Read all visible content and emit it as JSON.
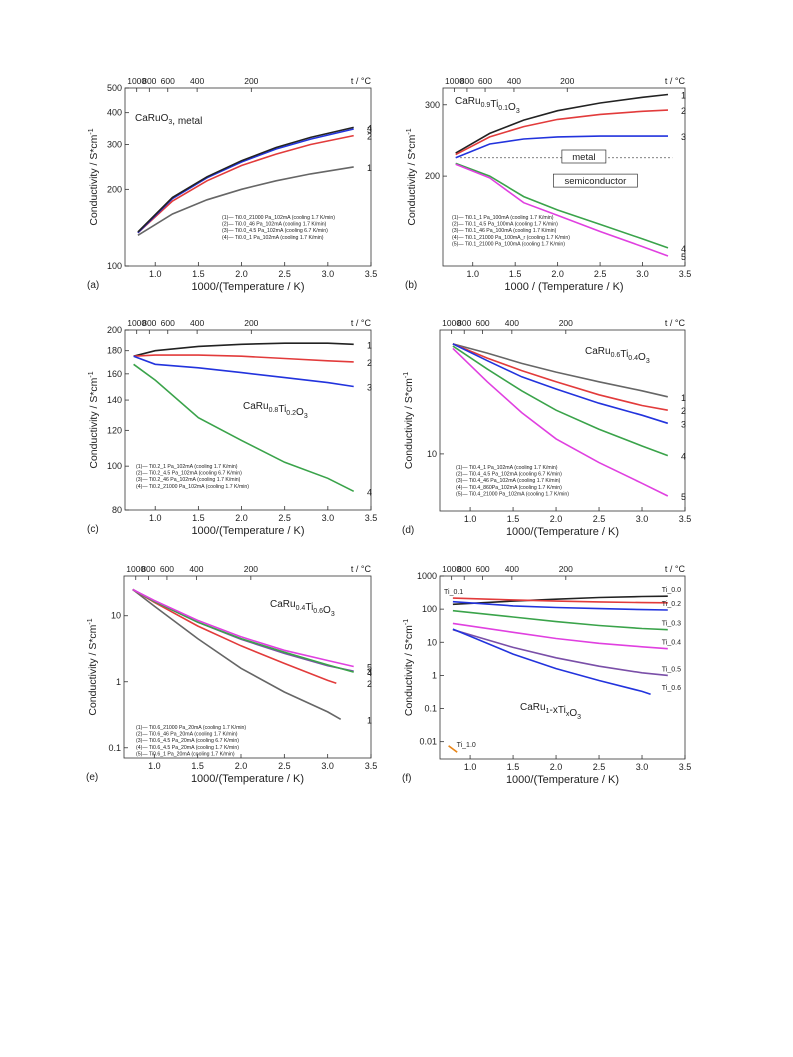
{
  "colors": {
    "black": "#222222",
    "red": "#e23b3b",
    "blue": "#2233dd",
    "green": "#3aa34a",
    "magenta": "#e040e0",
    "grey": "#666666",
    "purple": "#7a4fa8",
    "orange": "#e8861a"
  },
  "chart_data": [
    {
      "type": "line",
      "panel_label": "(a)",
      "title": "CaRuO3, metal",
      "xlabel": "1000/(Temperature / K)",
      "ylabel": "Conductivity / S*cm-1",
      "top_axis_label": "t / °C",
      "xlim": [
        0.65,
        3.5
      ],
      "ylim": [
        100,
        500
      ],
      "yscale": "log",
      "xticks": [
        "1.0",
        "1.5",
        "2.0",
        "2.5",
        "3.0",
        "3.5"
      ],
      "yticks": [
        "100",
        "200",
        "300",
        "400",
        "500"
      ],
      "top_ticks": [
        "1000",
        "800",
        "600",
        "400",
        "200"
      ],
      "legend": [
        "(1)— Ti0.0_21000 Pa_102mA (cooling 1.7 K/min)",
        "(2)— Ti0.0_46 Pa_102mA (cooling 1.7 K/min)",
        "(3)— Ti0.0_4.5 Pa_102mA (cooling 6.7 K/min)",
        "(4)— Ti0.0_1 Pa_102mA (cooling 1.7 K/min)"
      ],
      "series": [
        {
          "name": "1",
          "color": "#666666",
          "x": [
            0.8,
            1.2,
            1.6,
            2.0,
            2.4,
            2.8,
            3.3
          ],
          "y": [
            132,
            160,
            182,
            200,
            216,
            230,
            245
          ]
        },
        {
          "name": "2",
          "color": "#e23b3b",
          "x": [
            0.8,
            1.2,
            1.6,
            2.0,
            2.4,
            2.8,
            3.3
          ],
          "y": [
            135,
            180,
            216,
            248,
            275,
            300,
            325
          ]
        },
        {
          "name": "3",
          "color": "#2233dd",
          "x": [
            0.8,
            1.2,
            1.6,
            2.0,
            2.4,
            2.8,
            3.3
          ],
          "y": [
            135,
            184,
            222,
            256,
            288,
            315,
            345
          ]
        },
        {
          "name": "4",
          "color": "#222222",
          "x": [
            0.8,
            1.2,
            1.6,
            2.0,
            2.4,
            2.8,
            3.3
          ],
          "y": [
            136,
            186,
            224,
            259,
            292,
            320,
            350
          ]
        }
      ]
    },
    {
      "type": "line",
      "panel_label": "(b)",
      "title": "CaRu0.9Ti0.1O3",
      "xlabel": "1000 / (Temperature / K)",
      "ylabel": "Conductivity / S*cm-1",
      "top_axis_label": "t / °C",
      "xlim": [
        0.65,
        3.5
      ],
      "ylim": [
        120,
        330
      ],
      "yscale": "log",
      "xticks": [
        "1.0",
        "1.5",
        "2.0",
        "2.5",
        "3.0",
        "3.5"
      ],
      "yticks": [
        "200",
        "300"
      ],
      "top_ticks": [
        "1000",
        "800",
        "600",
        "400",
        "200"
      ],
      "annotations": [
        "metal",
        "semiconductor"
      ],
      "legend": [
        "(1)— Ti0.1_1 Pa_100mA (cooling 1.7 K/min)",
        "(2)— Ti0.1_4.5 Pa_100mA (cooling 1.7 K/min)",
        "(3)— Ti0.1_46 Pa_100mA (cooling 1.7 K/min)",
        "(4)— Ti0.1_21000 Pa_100mA_r (cooling 1.7 K/min)",
        "(5)— Ti0.1_21000 Pa_100mA (cooling 1.7 K/min)"
      ],
      "series": [
        {
          "name": "1",
          "color": "#222222",
          "x": [
            0.8,
            1.2,
            1.6,
            2.0,
            2.5,
            3.0,
            3.3
          ],
          "y": [
            228,
            255,
            275,
            290,
            303,
            313,
            318
          ]
        },
        {
          "name": "2",
          "color": "#e23b3b",
          "x": [
            0.8,
            1.2,
            1.6,
            2.0,
            2.5,
            3.0,
            3.3
          ],
          "y": [
            226,
            250,
            265,
            276,
            284,
            289,
            291
          ]
        },
        {
          "name": "3",
          "color": "#2233dd",
          "x": [
            0.8,
            1.2,
            1.6,
            2.0,
            2.5,
            3.0,
            3.3
          ],
          "y": [
            222,
            240,
            247,
            250,
            251,
            251,
            251
          ]
        },
        {
          "name": "4",
          "color": "#3aa34a",
          "x": [
            0.8,
            1.2,
            1.6,
            2.0,
            2.5,
            3.0,
            3.3
          ],
          "y": [
            215,
            200,
            178,
            165,
            152,
            140,
            133
          ]
        },
        {
          "name": "5",
          "color": "#e040e0",
          "x": [
            0.8,
            1.2,
            1.6,
            2.0,
            2.5,
            3.0,
            3.3
          ],
          "y": [
            214,
            198,
            172,
            160,
            146,
            134,
            127
          ]
        }
      ]
    },
    {
      "type": "line",
      "panel_label": "(c)",
      "title": "CaRu0.8Ti0.2O3",
      "xlabel": "1000/(Temperature / K)",
      "ylabel": "Conductivity / S*cm-1",
      "top_axis_label": "t / °C",
      "xlim": [
        0.65,
        3.5
      ],
      "ylim": [
        80,
        200
      ],
      "yscale": "log",
      "xticks": [
        "1.0",
        "1.5",
        "2.0",
        "2.5",
        "3.0",
        "3.5"
      ],
      "yticks": [
        "80",
        "100",
        "120",
        "140",
        "160",
        "180",
        "200"
      ],
      "top_ticks": [
        "1000",
        "800",
        "600",
        "400",
        "200"
      ],
      "legend": [
        "(1)— Ti0.2_1 Pa_102mA (cooling 1.7 K/min)",
        "(2)— Ti0.2_4.5 Pa_102mA (cooling 6.7 K/min)",
        "(3)— Ti0.2_46 Pa_102mA (cooling 1.7 K/min)",
        "(4)— Ti0.2_21000 Pa_102mA (cooling 1.7 K/min)"
      ],
      "series": [
        {
          "name": "1",
          "color": "#222222",
          "x": [
            0.75,
            1.0,
            1.5,
            2.0,
            2.5,
            3.0,
            3.3
          ],
          "y": [
            175,
            180,
            184,
            186,
            187,
            187,
            186
          ]
        },
        {
          "name": "2",
          "color": "#e23b3b",
          "x": [
            0.75,
            1.0,
            1.5,
            2.0,
            2.5,
            3.0,
            3.3
          ],
          "y": [
            175,
            176,
            176,
            175,
            173,
            171,
            170
          ]
        },
        {
          "name": "3",
          "color": "#2233dd",
          "x": [
            0.75,
            1.0,
            1.5,
            2.0,
            2.5,
            3.0,
            3.3
          ],
          "y": [
            175,
            168,
            165,
            161,
            157,
            153,
            150
          ]
        },
        {
          "name": "4",
          "color": "#3aa34a",
          "x": [
            0.75,
            1.0,
            1.5,
            2.0,
            2.5,
            3.0,
            3.3
          ],
          "y": [
            168,
            155,
            128,
            114,
            102,
            94,
            88
          ]
        }
      ]
    },
    {
      "type": "line",
      "panel_label": "(d)",
      "title": "CaRu0.6Ti0.4O3",
      "xlabel": "1000/(Temperature / K)",
      "ylabel": "Conductivity / S*cm-1",
      "top_axis_label": "t / °C",
      "xlim": [
        0.65,
        3.5
      ],
      "ylim": [
        5,
        45
      ],
      "yscale": "log",
      "xticks": [
        "1.0",
        "1.5",
        "2.0",
        "2.5",
        "3.0",
        "3.5"
      ],
      "yticks": [
        "10"
      ],
      "top_ticks": [
        "1000",
        "800",
        "600",
        "400",
        "200"
      ],
      "legend": [
        "(1)— Ti0.4_1 Pa_102mA (cooling 1.7 K/min)",
        "(2)— Ti0.4_4.5 Pa_102mA (cooling 6.7 K/min)",
        "(3)— Ti0.4_46 Pa_102mA (cooling 1.7 K/min)",
        "(4)— Ti0.4_860Pa_102mA (cooling 1.7 K/min)",
        "(5)— Ti0.4_21000 Pa_102mA (cooling 1.7 K/min)"
      ],
      "series": [
        {
          "name": "1",
          "color": "#666666",
          "x": [
            0.8,
            1.2,
            1.6,
            2.0,
            2.5,
            3.0,
            3.3
          ],
          "y": [
            38,
            34,
            30,
            27,
            24,
            21.5,
            20
          ]
        },
        {
          "name": "2",
          "color": "#e23b3b",
          "x": [
            0.8,
            1.2,
            1.6,
            2.0,
            2.5,
            3.0,
            3.3
          ],
          "y": [
            38,
            32,
            27.5,
            24,
            20.5,
            18,
            17
          ]
        },
        {
          "name": "3",
          "color": "#2233dd",
          "x": [
            0.8,
            1.2,
            1.6,
            2.0,
            2.5,
            3.0,
            3.3
          ],
          "y": [
            38,
            31,
            25.5,
            22,
            18.5,
            16,
            14.5
          ]
        },
        {
          "name": "4",
          "color": "#3aa34a",
          "x": [
            0.8,
            1.2,
            1.6,
            2.0,
            2.5,
            3.0,
            3.3
          ],
          "y": [
            37,
            28,
            21.5,
            17,
            13.5,
            11,
            9.8
          ]
        },
        {
          "name": "5",
          "color": "#e040e0",
          "x": [
            0.8,
            1.2,
            1.6,
            2.0,
            2.5,
            3.0,
            3.3
          ],
          "y": [
            36,
            24,
            16.5,
            12,
            9,
            7,
            6
          ]
        }
      ]
    },
    {
      "type": "line",
      "panel_label": "(e)",
      "title": "CaRu0.4Ti0.6O3",
      "xlabel": "1000/(Temperature / K)",
      "ylabel": "Conductivity / S*cm-1",
      "top_axis_label": "t / °C",
      "xlim": [
        0.65,
        3.5
      ],
      "ylim": [
        0.07,
        40
      ],
      "yscale": "log",
      "xticks": [
        "1.0",
        "1.5",
        "2.0",
        "2.5",
        "3.0",
        "3.5"
      ],
      "yticks": [
        "0.1",
        "1",
        "10"
      ],
      "top_ticks": [
        "1000",
        "800",
        "600",
        "400",
        "200"
      ],
      "legend": [
        "(1)— Ti0.6_21000 Pa_20mA (cooling 1.7 K/min)",
        "(2)— Ti0.6_46 Pa_20mA (cooling 1.7 K/min)",
        "(3)— Ti0.6_4.5 Pa_20mA (cooling 6.7 K/min)",
        "(4)— Ti0.6_4.5 Pa_20mA (cooling 1.7 K/min)",
        "(5)— Ti0.6_1 Pa_20mA (cooling 1.7 K/min)"
      ],
      "series": [
        {
          "name": "1",
          "color": "#666666",
          "x": [
            0.75,
            1.0,
            1.5,
            2.0,
            2.5,
            3.0,
            3.15
          ],
          "y": [
            25,
            14,
            4.5,
            1.6,
            0.7,
            0.35,
            0.27
          ]
        },
        {
          "name": "2",
          "color": "#e23b3b",
          "x": [
            0.75,
            1.0,
            1.5,
            2.0,
            2.5,
            3.0,
            3.1
          ],
          "y": [
            25,
            16,
            7,
            3.5,
            1.9,
            1.05,
            0.95
          ]
        },
        {
          "name": "3",
          "color": "#7a4fa8",
          "x": [
            0.75,
            1.0,
            1.5,
            2.0,
            2.5,
            3.0,
            3.3
          ],
          "y": [
            25,
            16.5,
            8,
            4.4,
            2.7,
            1.75,
            1.45
          ]
        },
        {
          "name": "4",
          "color": "#3aa34a",
          "x": [
            0.75,
            1.0,
            1.5,
            2.0,
            2.5,
            3.0,
            3.3
          ],
          "y": [
            25,
            16.5,
            8,
            4.5,
            2.8,
            1.8,
            1.4
          ]
        },
        {
          "name": "5",
          "color": "#e040e0",
          "x": [
            0.75,
            1.0,
            1.5,
            2.0,
            2.5,
            3.0,
            3.3
          ],
          "y": [
            25,
            17,
            8.5,
            4.8,
            3.0,
            2.1,
            1.7
          ]
        }
      ]
    },
    {
      "type": "line",
      "panel_label": "(f)",
      "title": "CaRu1-xTixO3",
      "xlabel": "1000/(Temperature / K)",
      "ylabel": "Conductivity / S*cm-1",
      "top_axis_label": "t / °C",
      "xlim": [
        0.65,
        3.5
      ],
      "ylim": [
        0.003,
        1000
      ],
      "yscale": "log",
      "xticks": [
        "1.0",
        "1.5",
        "2.0",
        "2.5",
        "3.0",
        "3.5"
      ],
      "yticks": [
        "0.01",
        "0.1",
        "1",
        "10",
        "100",
        "1000"
      ],
      "top_ticks": [
        "1000",
        "800",
        "600",
        "400",
        "200"
      ],
      "series": [
        {
          "name": "Ti_0.0",
          "color": "#222222",
          "x": [
            0.8,
            1.5,
            2.0,
            2.5,
            3.0,
            3.3
          ],
          "y": [
            140,
            175,
            200,
            225,
            240,
            245
          ]
        },
        {
          "name": "Ti_0.1",
          "color": "#e23b3b",
          "x": [
            0.8,
            1.5,
            2.0,
            2.5,
            3.0,
            3.3
          ],
          "y": [
            215,
            190,
            175,
            165,
            158,
            155
          ]
        },
        {
          "name": "Ti_0.2",
          "color": "#2233dd",
          "x": [
            0.8,
            1.5,
            2.0,
            2.5,
            3.0,
            3.3
          ],
          "y": [
            168,
            125,
            112,
            104,
            97,
            94
          ]
        },
        {
          "name": "Ti_0.3",
          "color": "#3aa34a",
          "x": [
            0.8,
            1.5,
            2.0,
            2.5,
            3.0,
            3.3
          ],
          "y": [
            90,
            58,
            42,
            32,
            26,
            24
          ]
        },
        {
          "name": "Ti_0.4",
          "color": "#e040e0",
          "x": [
            0.8,
            1.5,
            2.0,
            2.5,
            3.0,
            3.3
          ],
          "y": [
            37,
            20,
            13,
            9.3,
            7.3,
            6.4
          ]
        },
        {
          "name": "Ti_0.5",
          "color": "#7a4fa8",
          "x": [
            0.8,
            1.5,
            2.0,
            2.5,
            3.0,
            3.3
          ],
          "y": [
            24,
            7,
            3.4,
            1.9,
            1.2,
            1.0
          ]
        },
        {
          "name": "Ti_0.6",
          "color": "#2233dd",
          "x": [
            0.8,
            1.5,
            2.0,
            2.5,
            3.0,
            3.1
          ],
          "y": [
            25,
            4.4,
            1.6,
            0.7,
            0.33,
            0.27
          ]
        },
        {
          "name": "Ti_1.0",
          "color": "#e8861a",
          "x": [
            0.75,
            0.8,
            0.85
          ],
          "y": [
            0.0075,
            0.006,
            0.0048
          ]
        }
      ]
    }
  ]
}
